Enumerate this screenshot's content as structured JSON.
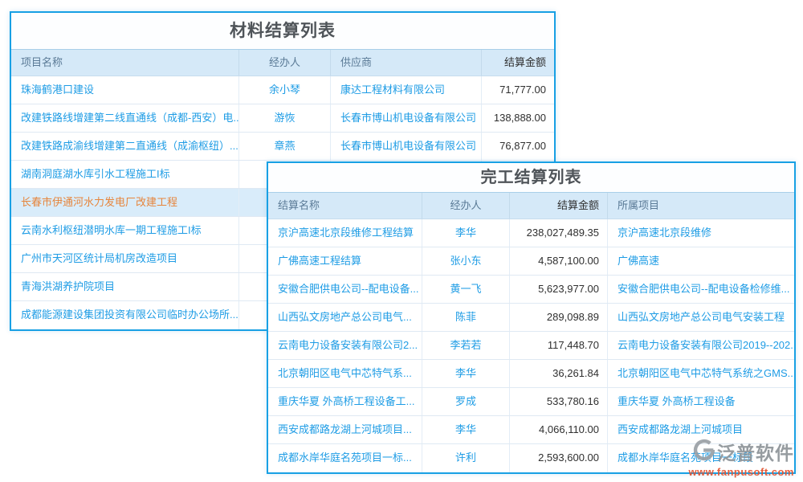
{
  "material_table": {
    "title": "材料结算列表",
    "columns": [
      "项目名称",
      "经办人",
      "供应商",
      "结算金额"
    ],
    "rows": [
      {
        "name": "珠海鹤港口建设",
        "handler": "余小琴",
        "supplier": "康达工程材料有限公司",
        "amount": "71,777.00"
      },
      {
        "name": "改建铁路线增建第二线直通线（成都-西安）电...",
        "handler": "游恢",
        "supplier": "长春市博山机电设备有限公司",
        "amount": "138,888.00"
      },
      {
        "name": "改建铁路成渝线增建第二直通线（成渝枢纽）...",
        "handler": "章燕",
        "supplier": "长春市博山机电设备有限公司",
        "amount": "76,877.00"
      },
      {
        "name": "湖南洞庭湖水库引水工程施工I标",
        "handler": "",
        "supplier": "",
        "amount": ""
      },
      {
        "name": "长春市伊通河水力发电厂改建工程",
        "handler": "",
        "supplier": "",
        "amount": "",
        "selected": true
      },
      {
        "name": "云南水利枢纽潜明水库一期工程施工I标",
        "handler": "",
        "supplier": "",
        "amount": ""
      },
      {
        "name": "广州市天河区统计局机房改造项目",
        "handler": "",
        "supplier": "",
        "amount": ""
      },
      {
        "name": "青海洪湖养护院项目",
        "handler": "",
        "supplier": "",
        "amount": ""
      },
      {
        "name": "成都能源建设集团投资有限公司临时办公场所...",
        "handler": "",
        "supplier": "",
        "amount": ""
      }
    ]
  },
  "completion_table": {
    "title": "完工结算列表",
    "columns": [
      "结算名称",
      "经办人",
      "结算金额",
      "所属项目"
    ],
    "rows": [
      {
        "name": "京沪高速北京段维修工程结算",
        "handler": "李华",
        "amount": "238,027,489.35",
        "project": "京沪高速北京段维修"
      },
      {
        "name": "广佛高速工程结算",
        "handler": "张小东",
        "amount": "4,587,100.00",
        "project": "广佛高速"
      },
      {
        "name": "安徽合肥供电公司--配电设备...",
        "handler": "黄一飞",
        "amount": "5,623,977.00",
        "project": "安徽合肥供电公司--配电设备检修维..."
      },
      {
        "name": "山西弘文房地产总公司电气...",
        "handler": "陈菲",
        "amount": "289,098.89",
        "project": "山西弘文房地产总公司电气安装工程"
      },
      {
        "name": "云南电力设备安装有限公司2...",
        "handler": "李若若",
        "amount": "117,448.70",
        "project": "云南电力设备安装有限公司2019--202..."
      },
      {
        "name": "北京朝阳区电气中芯特气系...",
        "handler": "李华",
        "amount": "36,261.84",
        "project": "北京朝阳区电气中芯特气系统之GMS..."
      },
      {
        "name": "重庆华夏 外高桥工程设备工...",
        "handler": "罗成",
        "amount": "533,780.16",
        "project": "重庆华夏 外高桥工程设备"
      },
      {
        "name": "西安成都路龙湖上河城项目...",
        "handler": "李华",
        "amount": "4,066,110.00",
        "project": "西安成都路龙湖上河城项目"
      },
      {
        "name": "成都水岸华庭名苑项目一标...",
        "handler": "许利",
        "amount": "2,593,600.00",
        "project": "成都水岸华庭名苑项目一标段"
      }
    ]
  },
  "watermark": {
    "brand": "泛普软件",
    "url": "www.fanpusoft.com"
  },
  "colors": {
    "panel_border": "#18a0e4",
    "header_bg": "#d5e9f8",
    "header_text": "#5a7a96",
    "link_text": "#1e9ce5",
    "amount_text": "#2f2f2f",
    "selected_row_bg": "#d9ecfa",
    "selected_row_text": "#e6853c",
    "title_text": "#4f5459",
    "watermark_brand": "#8e9499",
    "watermark_url": "#e2512e"
  }
}
